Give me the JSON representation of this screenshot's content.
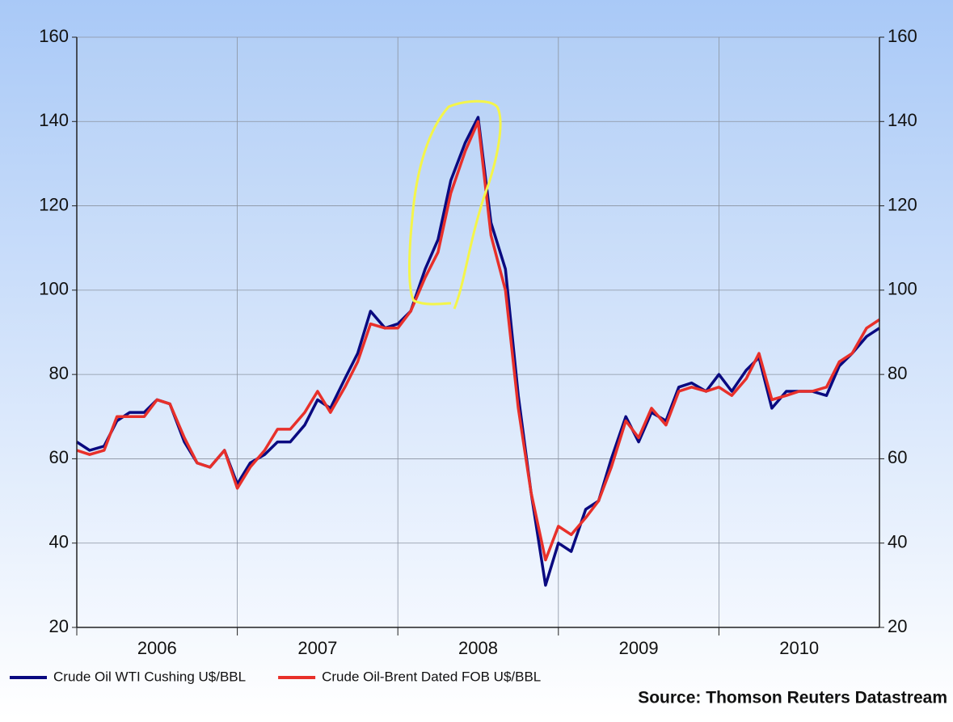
{
  "chart_data": {
    "type": "line",
    "x": [
      2006,
      2006.08,
      2006.17,
      2006.25,
      2006.33,
      2006.42,
      2006.5,
      2006.58,
      2006.67,
      2006.75,
      2006.83,
      2006.92,
      2007,
      2007.08,
      2007.17,
      2007.25,
      2007.33,
      2007.42,
      2007.5,
      2007.58,
      2007.67,
      2007.75,
      2007.83,
      2007.92,
      2008,
      2008.08,
      2008.17,
      2008.25,
      2008.33,
      2008.42,
      2008.5,
      2008.58,
      2008.67,
      2008.75,
      2008.83,
      2008.92,
      2009,
      2009.08,
      2009.17,
      2009.25,
      2009.33,
      2009.42,
      2009.5,
      2009.58,
      2009.67,
      2009.75,
      2009.83,
      2009.92,
      2010,
      2010.08,
      2010.17,
      2010.25,
      2010.33,
      2010.42,
      2010.5,
      2010.58,
      2010.67,
      2010.75,
      2010.83,
      2010.92,
      2011
    ],
    "series": [
      {
        "name": "Crude Oil WTI Cushing U$/BBL",
        "color": "#0a0a80",
        "values": [
          64,
          62,
          63,
          69,
          71,
          71,
          74,
          73,
          64,
          59,
          58,
          62,
          54,
          59,
          61,
          64,
          64,
          68,
          74,
          72,
          79,
          85,
          95,
          91,
          92,
          95,
          105,
          112,
          126,
          135,
          141,
          116,
          105,
          75,
          52,
          30,
          40,
          38,
          48,
          50,
          60,
          70,
          64,
          71,
          69,
          77,
          78,
          76,
          80,
          76,
          81,
          84,
          72,
          76,
          76,
          76,
          75,
          82,
          85,
          89,
          91
        ]
      },
      {
        "name": "Crude Oil-Brent Dated FOB U$/BBL",
        "color": "#e8302a",
        "values": [
          62,
          61,
          62,
          70,
          70,
          70,
          74,
          73,
          65,
          59,
          58,
          62,
          53,
          58,
          62,
          67,
          67,
          71,
          76,
          71,
          77,
          83,
          92,
          91,
          91,
          95,
          103,
          109,
          123,
          133,
          140,
          113,
          100,
          72,
          52,
          36,
          44,
          42,
          46,
          50,
          58,
          69,
          65,
          72,
          68,
          76,
          77,
          76,
          77,
          75,
          79,
          85,
          74,
          75,
          76,
          76,
          77,
          83,
          85,
          91,
          93
        ]
      }
    ],
    "xlim": [
      2006,
      2011
    ],
    "xticks": [
      {
        "value": 2006,
        "label": "2006"
      },
      {
        "value": 2007,
        "label": "2007"
      },
      {
        "value": 2008,
        "label": "2008"
      },
      {
        "value": 2009,
        "label": "2009"
      },
      {
        "value": 2010,
        "label": "2010"
      }
    ],
    "ylim": [
      20,
      160
    ],
    "yticks": [
      20,
      40,
      60,
      80,
      100,
      120,
      140,
      160
    ],
    "grid": true,
    "source": "Source: Thomson Reuters Datastream"
  }
}
